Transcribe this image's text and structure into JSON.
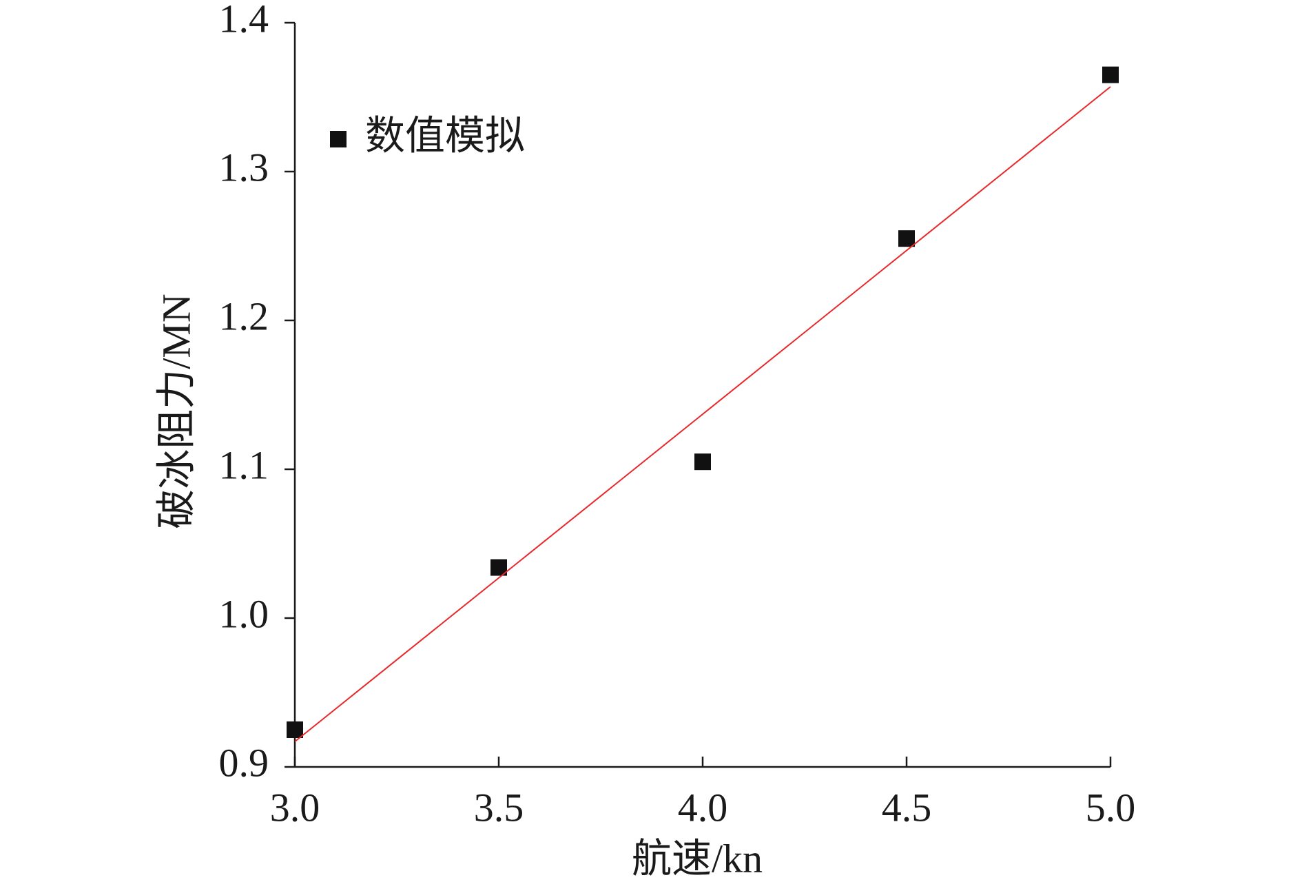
{
  "chart_data": {
    "type": "scatter",
    "x_label": "航速/kn",
    "y_label": "破冰阻力/MN",
    "x": [
      3.0,
      3.5,
      4.0,
      4.5,
      5.0
    ],
    "series": [
      {
        "name": "数值模拟",
        "color": "#111111",
        "marker": "square",
        "values": [
          0.925,
          1.034,
          1.105,
          1.255,
          1.365
        ]
      },
      {
        "color": "#e8282b",
        "line": true,
        "x": [
          3.0,
          5.0
        ],
        "values": [
          0.917,
          1.357
        ]
      }
    ],
    "xlim": [
      3.0,
      5.0
    ],
    "xticks": [
      {
        "value": 3.0,
        "label": "3.0"
      },
      {
        "value": 3.5,
        "label": "3.5"
      },
      {
        "value": 4.0,
        "label": "4.0"
      },
      {
        "value": 4.5,
        "label": "4.5"
      },
      {
        "value": 5.0,
        "label": "5.0"
      }
    ],
    "ylim": [
      0.9,
      1.4
    ],
    "yticks": [
      0.9,
      {
        "value": 1.0,
        "label": "1.0"
      },
      1.1,
      1.2,
      1.3,
      1.4
    ],
    "grid": false,
    "legend": "upper left"
  }
}
